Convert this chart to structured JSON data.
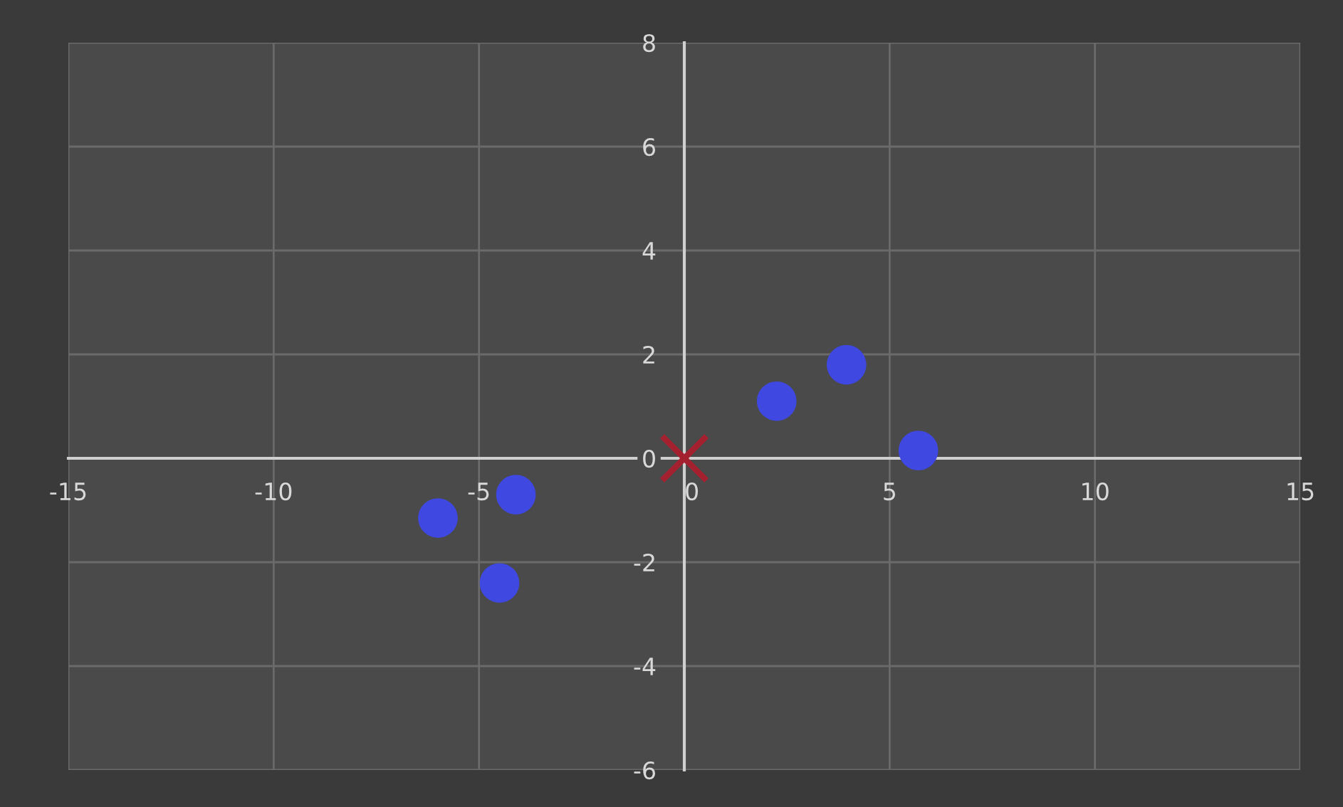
{
  "chart_data": {
    "type": "scatter",
    "series": [
      {
        "color": "#3f48e0",
        "marker": "circle",
        "x": [
          -6.0,
          -4.1,
          -4.5,
          2.25,
          3.95,
          5.7
        ],
        "values": [
          -1.15,
          -0.7,
          -2.4,
          1.1,
          1.8,
          0.15
        ]
      },
      {
        "color": "#a3202e",
        "marker": "cross",
        "x": [
          0
        ],
        "values": [
          0
        ]
      }
    ],
    "xlim": [
      -15,
      15
    ],
    "xticks": [
      -15,
      -10,
      -5,
      0,
      5,
      10,
      15
    ],
    "ylim": [
      -6,
      8
    ],
    "yticks": [
      -6,
      -4,
      -2,
      0,
      2,
      4,
      6,
      8
    ],
    "grid": true,
    "legend": false
  }
}
